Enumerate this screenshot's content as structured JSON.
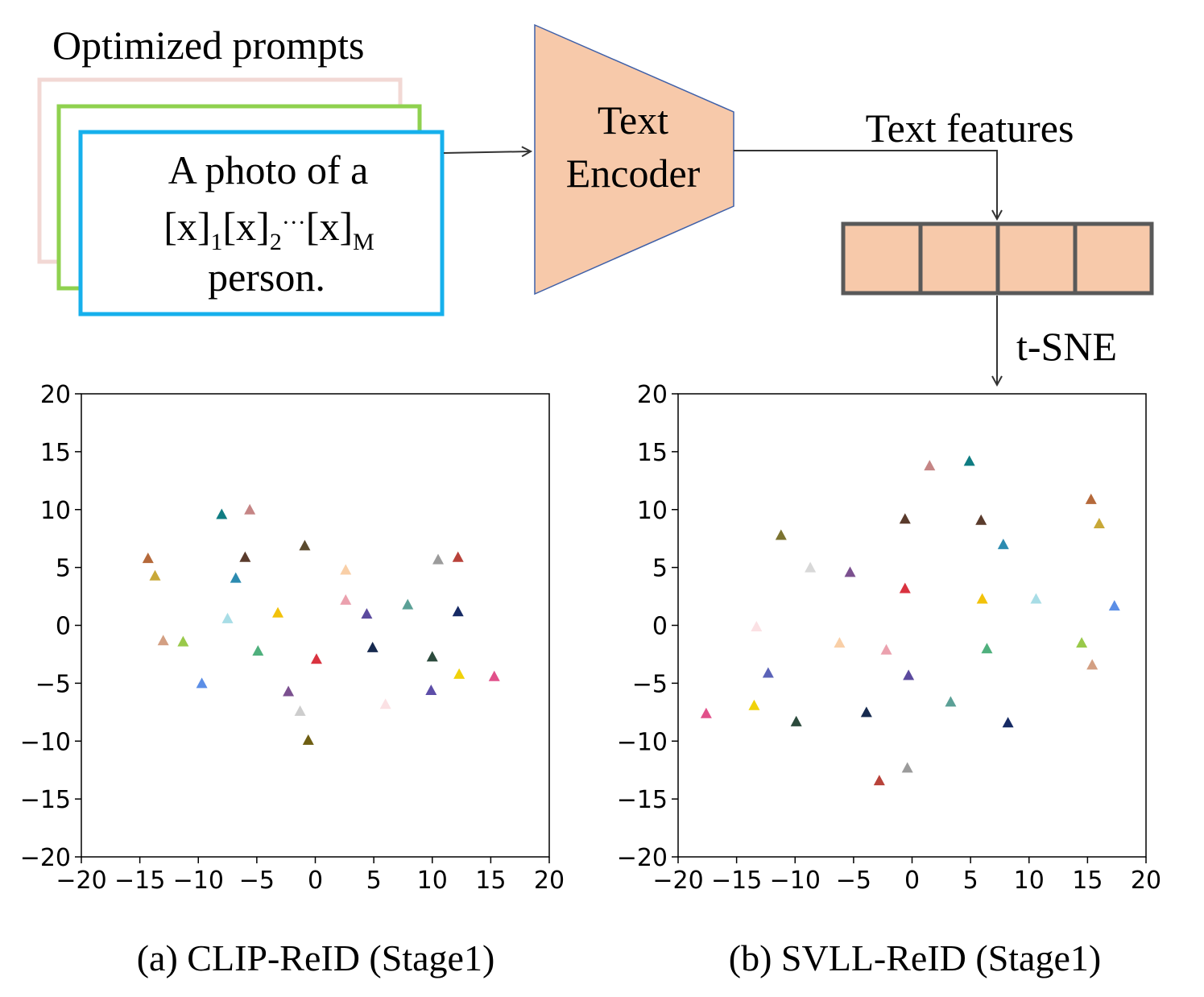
{
  "diagram": {
    "prompts_title": "Optimized prompts",
    "prompt_line1": "A photo of a",
    "prompt_token": "[x]",
    "prompt_sub1": "1",
    "prompt_sub2": "2",
    "prompt_dots": "···",
    "prompt_subM": "M",
    "prompt_line3": "person.",
    "encoder_line1": "Text",
    "encoder_line2": "Encoder",
    "features_label": "Text features",
    "tsne_label": "t-SNE",
    "colors": {
      "encoder_fill": "#f7c9aa",
      "card_back": "#f2d8d4",
      "card_mid": "#8fd14f",
      "card_front": "#16b0ec",
      "feature_border": "#595959"
    }
  },
  "chart_data": [
    {
      "type": "scatter",
      "caption": "(a) CLIP-ReID (Stage1)",
      "marker": "triangle",
      "xlim": [
        -20,
        20
      ],
      "ylim": [
        -20,
        20
      ],
      "xticks": [
        -20,
        -15,
        -10,
        -5,
        0,
        5,
        10,
        15,
        20
      ],
      "yticks": [
        -20,
        -15,
        -10,
        -5,
        0,
        5,
        10,
        15,
        20
      ],
      "points": [
        {
          "x": -14.3,
          "y": 5.8,
          "color": "#b5693a"
        },
        {
          "x": -13.7,
          "y": 4.3,
          "color": "#c8a838"
        },
        {
          "x": -13.0,
          "y": -1.3,
          "color": "#d39f82"
        },
        {
          "x": -11.3,
          "y": -1.4,
          "color": "#99c94a"
        },
        {
          "x": -9.7,
          "y": -5.0,
          "color": "#5b8ee6"
        },
        {
          "x": -8.0,
          "y": 9.6,
          "color": "#0f7c82"
        },
        {
          "x": -7.5,
          "y": 0.6,
          "color": "#a8dde6"
        },
        {
          "x": -6.8,
          "y": 4.1,
          "color": "#2c8bb0"
        },
        {
          "x": -6.0,
          "y": 5.9,
          "color": "#5a3b2c"
        },
        {
          "x": -5.6,
          "y": 10.0,
          "color": "#c58585"
        },
        {
          "x": -4.9,
          "y": -2.2,
          "color": "#4fb07d"
        },
        {
          "x": -3.2,
          "y": 1.1,
          "color": "#f2c20a"
        },
        {
          "x": -2.3,
          "y": -5.7,
          "color": "#7b508f"
        },
        {
          "x": -1.3,
          "y": -7.4,
          "color": "#cdcdcd"
        },
        {
          "x": -0.9,
          "y": 6.9,
          "color": "#5b4a2e"
        },
        {
          "x": -0.6,
          "y": -9.9,
          "color": "#6e5e12"
        },
        {
          "x": 0.1,
          "y": -2.9,
          "color": "#d9323f"
        },
        {
          "x": 2.6,
          "y": 4.8,
          "color": "#f9cfa7"
        },
        {
          "x": 2.6,
          "y": 2.2,
          "color": "#eba1ae"
        },
        {
          "x": 4.4,
          "y": 1.0,
          "color": "#5b4a9e"
        },
        {
          "x": 4.9,
          "y": -1.9,
          "color": "#172a4f"
        },
        {
          "x": 6.0,
          "y": -6.8,
          "color": "#fbe1e4"
        },
        {
          "x": 7.9,
          "y": 1.8,
          "color": "#5ba096"
        },
        {
          "x": 9.9,
          "y": -5.6,
          "color": "#5d4ea8"
        },
        {
          "x": 10.0,
          "y": -2.7,
          "color": "#2b4a3c"
        },
        {
          "x": 10.5,
          "y": 5.7,
          "color": "#9b9b9b"
        },
        {
          "x": 12.2,
          "y": 5.9,
          "color": "#b8423a"
        },
        {
          "x": 12.2,
          "y": 1.2,
          "color": "#162a64"
        },
        {
          "x": 12.3,
          "y": -4.2,
          "color": "#f0d20a"
        },
        {
          "x": 15.3,
          "y": -4.4,
          "color": "#e1508a"
        }
      ]
    },
    {
      "type": "scatter",
      "caption": "(b) SVLL-ReID (Stage1)",
      "marker": "triangle",
      "xlim": [
        -20,
        20
      ],
      "ylim": [
        -20,
        20
      ],
      "xticks": [
        -20,
        -15,
        -10,
        -5,
        0,
        5,
        10,
        15,
        20
      ],
      "yticks": [
        -20,
        -15,
        -10,
        -5,
        0,
        5,
        10,
        15,
        20
      ],
      "points": [
        {
          "x": -17.6,
          "y": -7.6,
          "color": "#e1508a"
        },
        {
          "x": -13.5,
          "y": -6.9,
          "color": "#f0d20a"
        },
        {
          "x": -13.3,
          "y": -0.1,
          "color": "#fbe1e4"
        },
        {
          "x": -12.3,
          "y": -4.1,
          "color": "#5b63b8"
        },
        {
          "x": -11.2,
          "y": 7.8,
          "color": "#7b7330"
        },
        {
          "x": -9.9,
          "y": -8.3,
          "color": "#2b4a3c"
        },
        {
          "x": -8.7,
          "y": 5.0,
          "color": "#d8d8d8"
        },
        {
          "x": -6.2,
          "y": -1.5,
          "color": "#f9cfa7"
        },
        {
          "x": -5.3,
          "y": 4.6,
          "color": "#7b508f"
        },
        {
          "x": -3.9,
          "y": -7.5,
          "color": "#172a4f"
        },
        {
          "x": -2.8,
          "y": -13.4,
          "color": "#b8423a"
        },
        {
          "x": -2.2,
          "y": -2.1,
          "color": "#eba1ae"
        },
        {
          "x": -0.6,
          "y": 9.2,
          "color": "#5a3b2c"
        },
        {
          "x": -0.6,
          "y": 3.2,
          "color": "#d9323f"
        },
        {
          "x": -0.4,
          "y": -12.3,
          "color": "#9b9b9b"
        },
        {
          "x": -0.3,
          "y": -4.3,
          "color": "#5b4a9e"
        },
        {
          "x": 1.5,
          "y": 13.8,
          "color": "#c58585"
        },
        {
          "x": 3.3,
          "y": -6.6,
          "color": "#5ba096"
        },
        {
          "x": 4.9,
          "y": 14.2,
          "color": "#0f7c82"
        },
        {
          "x": 5.9,
          "y": 9.1,
          "color": "#5a3b2c"
        },
        {
          "x": 6.0,
          "y": 2.3,
          "color": "#f2c20a"
        },
        {
          "x": 6.4,
          "y": -2.0,
          "color": "#4fb07d"
        },
        {
          "x": 7.8,
          "y": 7.0,
          "color": "#2c8bb0"
        },
        {
          "x": 8.2,
          "y": -8.4,
          "color": "#162a64"
        },
        {
          "x": 10.6,
          "y": 2.3,
          "color": "#a8dde6"
        },
        {
          "x": 14.5,
          "y": -1.5,
          "color": "#99c94a"
        },
        {
          "x": 15.3,
          "y": 10.9,
          "color": "#b5693a"
        },
        {
          "x": 15.4,
          "y": -3.4,
          "color": "#d39f82"
        },
        {
          "x": 16.0,
          "y": 8.8,
          "color": "#c8a838"
        },
        {
          "x": 17.3,
          "y": 1.7,
          "color": "#5b8ee6"
        }
      ]
    }
  ]
}
